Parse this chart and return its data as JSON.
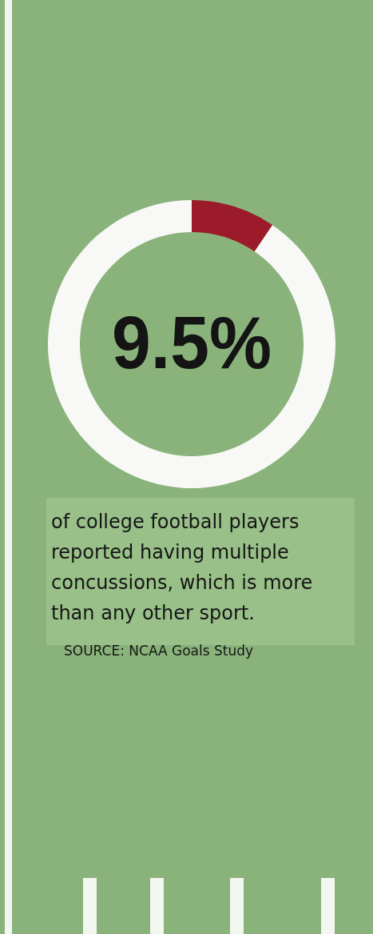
{
  "chart_data": {
    "type": "donut",
    "categories": [
      null,
      null
    ],
    "values": [
      9.5,
      90.5
    ],
    "colors": [
      "#9b1b2b",
      "#f8f8f6"
    ],
    "title": "9.5%",
    "annotations": [
      "of college football players reported having multiple concussions, which is more than any other sport.",
      "SOURCE: NCAA Goals Study"
    ]
  }
}
